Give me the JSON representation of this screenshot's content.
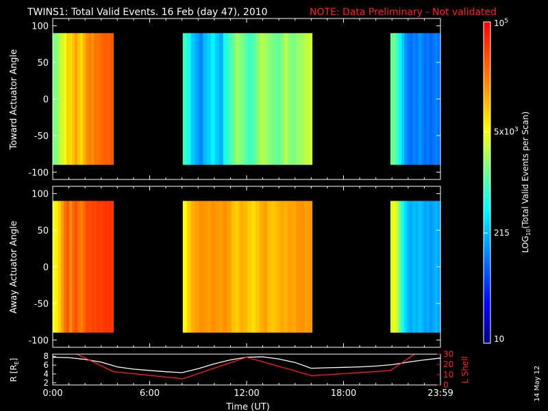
{
  "header": {
    "title": "TWINS1: Total Valid Events. 16 Feb (day  47), 2010",
    "note": "NOTE: Data Preliminary - Not validated"
  },
  "chart_data": [
    {
      "type": "heatmap",
      "ylabel": "Toward Actuator Angle",
      "ylim": [
        -110,
        110
      ],
      "yticks": [
        "100",
        "50",
        "0",
        "-50",
        "-100"
      ],
      "ytick_values": [
        100,
        50,
        0,
        -50,
        -100
      ],
      "data_angle_range": [
        -90,
        90
      ],
      "xlim_hours": [
        0,
        24
      ],
      "color_scale": "log10",
      "segments": [
        {
          "start_h": 0.0,
          "end_h": 3.75,
          "level": [
            0.55,
            0.55,
            0.6,
            0.62,
            0.65,
            0.72,
            0.7,
            0.74,
            0.78,
            0.73,
            0.7,
            0.76,
            0.8,
            0.82,
            0.8,
            0.84,
            0.83,
            0.85,
            0.86,
            0.87,
            0.86,
            0.88
          ]
        },
        {
          "start_h": 8.05,
          "end_h": 16.05,
          "level": [
            0.48,
            0.44,
            0.36,
            0.32,
            0.28,
            0.34,
            0.37,
            0.41,
            0.36,
            0.33,
            0.44,
            0.48,
            0.52,
            0.58,
            0.55,
            0.52,
            0.48,
            0.5,
            0.55,
            0.6,
            0.58,
            0.56,
            0.54,
            0.52,
            0.55,
            0.6,
            0.56,
            0.54,
            0.57,
            0.58,
            0.6,
            0.62
          ]
        },
        {
          "start_h": 20.9,
          "end_h": 24.0,
          "level": [
            0.52,
            0.54,
            0.48,
            0.42,
            0.36,
            0.3,
            0.27,
            0.25,
            0.28,
            0.26,
            0.3,
            0.28,
            0.25,
            0.27,
            0.24,
            0.26,
            0.28,
            0.25
          ]
        }
      ]
    },
    {
      "type": "heatmap",
      "ylabel": "Away Actuator Angle",
      "ylim": [
        -110,
        110
      ],
      "yticks": [
        "100",
        "50",
        "0",
        "-50",
        "-100"
      ],
      "ytick_values": [
        100,
        50,
        0,
        -50,
        -100
      ],
      "data_angle_range": [
        -90,
        90
      ],
      "xlim_hours": [
        0,
        24
      ],
      "color_scale": "log10",
      "segments": [
        {
          "start_h": 0.0,
          "end_h": 3.75,
          "level": [
            0.65,
            0.68,
            0.72,
            0.78,
            0.84,
            0.88,
            0.8,
            0.86,
            0.89,
            0.84,
            0.82,
            0.86,
            0.9,
            0.89,
            0.91,
            0.9,
            0.92,
            0.91,
            0.92,
            0.93,
            0.92,
            0.93
          ]
        },
        {
          "start_h": 8.05,
          "end_h": 16.05,
          "level": [
            0.66,
            0.72,
            0.76,
            0.78,
            0.8,
            0.79,
            0.78,
            0.8,
            0.79,
            0.78,
            0.8,
            0.78,
            0.74,
            0.72,
            0.76,
            0.75,
            0.72,
            0.7,
            0.73,
            0.76,
            0.78,
            0.74,
            0.73,
            0.75,
            0.77,
            0.76,
            0.78,
            0.77,
            0.79,
            0.8,
            0.78,
            0.79
          ]
        },
        {
          "start_h": 20.9,
          "end_h": 24.0,
          "level": [
            0.62,
            0.66,
            0.6,
            0.52,
            0.44,
            0.38,
            0.34,
            0.32,
            0.35,
            0.33,
            0.36,
            0.34,
            0.31,
            0.33,
            0.3,
            0.32,
            0.34,
            0.31
          ]
        }
      ]
    },
    {
      "type": "line",
      "ylabel_left": "R [R",
      "ylabel_left_sub": "E",
      "ylabel_left_end": "]",
      "ylabel_right": "L Shell",
      "yticks_left": [
        "8",
        "6",
        "4",
        "2"
      ],
      "ytick_values_left": [
        8,
        6,
        4,
        2
      ],
      "ylim_left": [
        1.5,
        8.5
      ],
      "yticks_right": [
        "30",
        "20",
        "10",
        "0"
      ],
      "ytick_values_right": [
        30,
        20,
        10,
        0
      ],
      "ylim_right": [
        0,
        30
      ],
      "xlabel": "Time (UT)",
      "xticks": [
        "0:00",
        "6:00",
        "12:00",
        "18:00",
        "23:59"
      ],
      "xtick_hours": [
        0,
        6,
        12,
        18,
        24
      ],
      "series": [
        {
          "axis": "left",
          "color": "#ffffff",
          "x": [
            0,
            1,
            2,
            3,
            4,
            5,
            6,
            7,
            8,
            9,
            10,
            11,
            12,
            13,
            14,
            15,
            16,
            17,
            18,
            19,
            20,
            21,
            22,
            23,
            24
          ],
          "y": [
            7.8,
            7.7,
            7.3,
            6.7,
            5.6,
            5.1,
            4.8,
            4.5,
            4.3,
            5.2,
            6.3,
            7.2,
            7.8,
            7.9,
            7.4,
            6.6,
            5.3,
            5.4,
            5.5,
            5.6,
            5.8,
            6.1,
            6.7,
            7.2,
            7.6
          ]
        },
        {
          "axis": "right",
          "color": "#ff2020",
          "x": [
            1.5,
            3.75,
            8.05,
            12.0,
            16.05,
            20.9,
            22.4
          ],
          "y": [
            30,
            13,
            6,
            27,
            9,
            14,
            30
          ]
        }
      ]
    }
  ],
  "colorbar": {
    "label": "LOG",
    "label_sub": "10",
    "label_rest": "(Total Valid  Events per Scan)",
    "ticks": [
      {
        "base": "10",
        "exp": "5",
        "frac": 1.0
      },
      {
        "base": "5x10",
        "exp": "3",
        "frac": 0.658
      },
      {
        "base": "215",
        "exp": "",
        "frac": 0.343
      },
      {
        "base": "10",
        "exp": "",
        "frac": 0.0
      }
    ]
  },
  "footer": {
    "date_stamp": "14 May 12"
  }
}
